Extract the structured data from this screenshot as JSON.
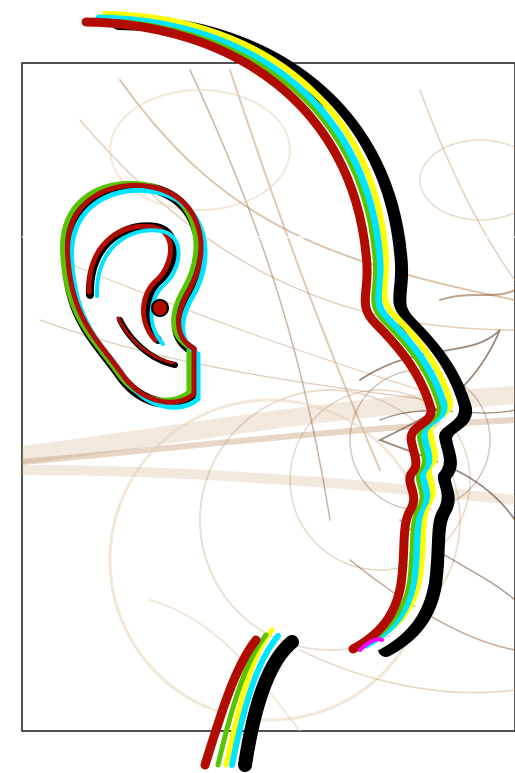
{
  "artwork": {
    "background_color": "#ffffff",
    "frame_color": "#1a1a1a",
    "fractal_colors": [
      "#c8a27a",
      "#b98a5c",
      "#8a5a34",
      "#5c3a1e",
      "#e6cfb3"
    ],
    "outline_colors": [
      "#000000",
      "#ffffff",
      "#00e5ff",
      "#ffff00",
      "#b20c00",
      "#57c400",
      "#ff00ff"
    ],
    "ear_icon": "ear-icon",
    "profile_icon": "face-profile-icon"
  }
}
